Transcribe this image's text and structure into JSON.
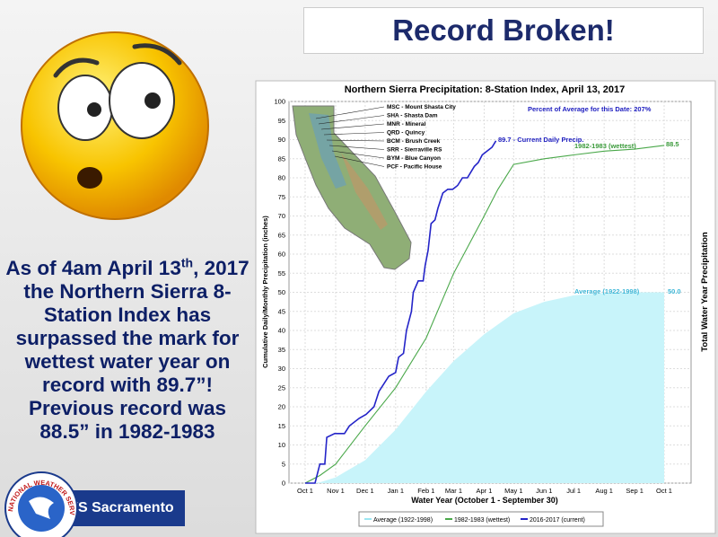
{
  "slide": {
    "title": "Record Broken!",
    "body": [
      "As of 4am April 13",
      "th",
      ", 2017 the Northern Sierra 8-Station Index has surpassed the mark for wettest water year on record with 89.7”! Previous record was 88.5” in 1982-1983"
    ],
    "logo_text": "NWS Sacramento",
    "seal_text": "NATIONAL WEATHER SERVICE"
  },
  "chart_data": {
    "type": "line",
    "title": "Northern Sierra Precipitation: 8-Station Index, April 13, 2017",
    "x_label": "Water Year (October 1 - September 30)",
    "y_label": "Cumulative Daily/Monthly Precipitation (inches)",
    "y2_label": "Total Water Year Precipitation",
    "xlim": [
      0,
      365
    ],
    "xticks": [
      {
        "value": 0,
        "label": "Oct 1"
      },
      {
        "value": 31,
        "label": "Nov 1"
      },
      {
        "value": 61,
        "label": "Dec 1"
      },
      {
        "value": 92,
        "label": "Jan 1"
      },
      {
        "value": 123,
        "label": "Feb 1"
      },
      {
        "value": 151,
        "label": "Mar 1"
      },
      {
        "value": 182,
        "label": "Apr 1"
      },
      {
        "value": 212,
        "label": "May 1"
      },
      {
        "value": 243,
        "label": "Jun 1"
      },
      {
        "value": 273,
        "label": "Jul 1"
      },
      {
        "value": 304,
        "label": "Aug 1"
      },
      {
        "value": 335,
        "label": "Sep 1"
      },
      {
        "value": 365,
        "label": "Oct 1"
      }
    ],
    "ylim": [
      0,
      100
    ],
    "yticks": [
      0,
      5,
      10,
      15,
      20,
      25,
      30,
      35,
      40,
      45,
      50,
      55,
      60,
      65,
      70,
      75,
      80,
      85,
      90,
      95,
      100
    ],
    "grid": true,
    "legend": "bottom",
    "series": [
      {
        "name": "Average (1922-1998)",
        "color": "#c8f4fa",
        "fill": true,
        "x": [
          0,
          15,
          31,
          61,
          92,
          123,
          151,
          182,
          212,
          243,
          273,
          304,
          335,
          365
        ],
        "values": [
          0,
          0.2,
          1.5,
          6,
          14,
          24,
          32,
          39,
          44.5,
          47.5,
          49.2,
          49.8,
          50,
          50
        ]
      },
      {
        "name": "1982-1983 (wettest)",
        "color": "#4aa84a",
        "fill": false,
        "x": [
          0,
          15,
          31,
          61,
          92,
          123,
          151,
          182,
          196,
          212,
          243,
          273,
          304,
          335,
          365
        ],
        "values": [
          0,
          2,
          5,
          15,
          25,
          38,
          55,
          70,
          77,
          83.5,
          85,
          86,
          87,
          87.5,
          88.5
        ]
      },
      {
        "name": "2016-2017 (current)",
        "color": "#2424c8",
        "fill": false,
        "x": [
          0,
          10,
          15,
          20,
          22,
          30,
          40,
          45,
          55,
          62,
          70,
          75,
          85,
          92,
          95,
          100,
          103,
          108,
          110,
          115,
          120,
          122,
          125,
          128,
          132,
          135,
          140,
          145,
          150,
          155,
          160,
          165,
          172,
          176,
          180,
          185,
          190,
          194
        ],
        "values": [
          0,
          0,
          5,
          5,
          12,
          13,
          13,
          15,
          17,
          18,
          20,
          24,
          28,
          29,
          33,
          34,
          40,
          45,
          50,
          53,
          53,
          57,
          61,
          68,
          69,
          72,
          76,
          77,
          77,
          78,
          80,
          80,
          83,
          84,
          86,
          87,
          88,
          89.7
        ]
      }
    ],
    "annotations": [
      "Percent of Average for this Date: 207%",
      "89.7 -  Current Daily Precip.",
      "1982-1983 (wettest)",
      "88.5",
      "Average (1922-1998)",
      "50.0"
    ],
    "map_labels": [
      "MSC - Mount Shasta City",
      "SHA - Shasta Dam",
      "MNR - Mineral",
      "QRD - Quincy",
      "BCM - Brush Creek",
      "SRR - Sierraville RS",
      "BYM - Blue Canyon",
      "PCF - Pacific House"
    ]
  }
}
